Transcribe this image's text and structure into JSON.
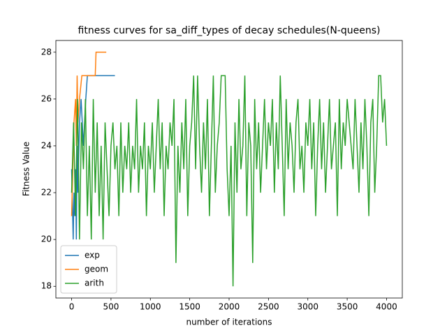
{
  "chart_data": {
    "type": "line",
    "title": "fitness curves for sa_diff_types of decay schedules(N-queens)",
    "xlabel": "number of iterations",
    "ylabel": "Fitness Value",
    "xlim": [
      -200,
      4200
    ],
    "xticks": [
      0,
      500,
      1000,
      1500,
      2000,
      2500,
      3000,
      3500,
      4000
    ],
    "ylim": [
      17.5,
      28.5
    ],
    "yticks": [
      18,
      20,
      22,
      24,
      26,
      28
    ],
    "grid": false,
    "legend": "lower left",
    "series": [
      {
        "name": "exp",
        "color": "#1f77b4",
        "x": [
          0,
          20,
          30,
          40,
          50,
          60,
          70,
          80,
          100,
          120,
          150,
          180,
          200,
          250,
          300,
          550
        ],
        "values": [
          23,
          20,
          22,
          21,
          23,
          20,
          24,
          22,
          25,
          26,
          24,
          26,
          27,
          27,
          27,
          27
        ]
      },
      {
        "name": "geom",
        "color": "#ff7f0e",
        "x": [
          0,
          30,
          50,
          60,
          70,
          80,
          100,
          130,
          300,
          310,
          440
        ],
        "values": [
          21,
          25,
          26,
          24,
          27,
          25,
          26,
          27,
          27,
          28,
          28
        ]
      },
      {
        "name": "arith",
        "color": "#2ca02c",
        "x": [
          0,
          25,
          50,
          75,
          100,
          125,
          150,
          175,
          200,
          225,
          250,
          275,
          300,
          325,
          350,
          375,
          400,
          425,
          450,
          475,
          500,
          525,
          550,
          575,
          600,
          625,
          650,
          675,
          700,
          725,
          750,
          775,
          800,
          825,
          850,
          875,
          900,
          925,
          950,
          975,
          1000,
          1025,
          1050,
          1075,
          1100,
          1125,
          1150,
          1175,
          1200,
          1225,
          1250,
          1275,
          1300,
          1325,
          1350,
          1375,
          1400,
          1425,
          1450,
          1475,
          1500,
          1525,
          1550,
          1575,
          1600,
          1625,
          1650,
          1675,
          1700,
          1725,
          1750,
          1775,
          1800,
          1825,
          1850,
          1875,
          1900,
          1925,
          1950,
          1975,
          2000,
          2025,
          2050,
          2075,
          2100,
          2125,
          2150,
          2175,
          2200,
          2225,
          2250,
          2275,
          2300,
          2325,
          2350,
          2375,
          2400,
          2425,
          2450,
          2475,
          2500,
          2525,
          2550,
          2575,
          2600,
          2625,
          2650,
          2675,
          2700,
          2725,
          2750,
          2775,
          2800,
          2825,
          2850,
          2875,
          2900,
          2925,
          2950,
          2975,
          3000,
          3025,
          3050,
          3075,
          3100,
          3125,
          3150,
          3175,
          3200,
          3225,
          3250,
          3275,
          3300,
          3325,
          3350,
          3375,
          3400,
          3425,
          3450,
          3475,
          3500,
          3525,
          3550,
          3575,
          3600,
          3625,
          3650,
          3675,
          3700,
          3725,
          3750,
          3775,
          3800,
          3825,
          3850,
          3875,
          3900,
          3925,
          3950,
          3975,
          4000
        ],
        "values": [
          22,
          25,
          21,
          26,
          20,
          25,
          23,
          26,
          21,
          24,
          20,
          26,
          22,
          25,
          21,
          24,
          20,
          25,
          23,
          21,
          24,
          25,
          23,
          24,
          21,
          25,
          22,
          24,
          23,
          25,
          22,
          24,
          23,
          26,
          22,
          24,
          23,
          25,
          21,
          24,
          23,
          25,
          22,
          24,
          26,
          23,
          25,
          21,
          24,
          23,
          25,
          24,
          26,
          19,
          24,
          22,
          25,
          23,
          26,
          21,
          24,
          25,
          27,
          23,
          27,
          24,
          22,
          25,
          23,
          26,
          21,
          24,
          27,
          22,
          24,
          25,
          27,
          27,
          27,
          23,
          21,
          24,
          18,
          25,
          22,
          26,
          23,
          24,
          27,
          21,
          25,
          24,
          19,
          26,
          23,
          25,
          22,
          24,
          26,
          23,
          25,
          24,
          26,
          22,
          25,
          23,
          27,
          24,
          21,
          26,
          23,
          25,
          24,
          22,
          25,
          26,
          23,
          24,
          22,
          25,
          24,
          26,
          23,
          25,
          21,
          24,
          26,
          23,
          25,
          22,
          24,
          26,
          23,
          24,
          25,
          21,
          26,
          23,
          25,
          24,
          26,
          25,
          24,
          23,
          26,
          24,
          22,
          25,
          23,
          26,
          24,
          21,
          25,
          26,
          22,
          24,
          27,
          27,
          25,
          26,
          24
        ]
      }
    ]
  }
}
